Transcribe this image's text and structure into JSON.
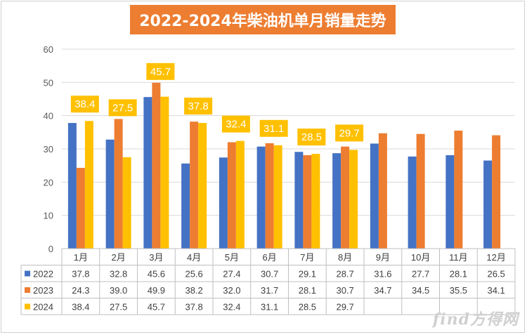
{
  "title": "2022-2024年柴油机单月销量走势",
  "watermark": "find方得网",
  "chart_data": {
    "type": "bar",
    "title": "2022-2024年柴油机单月销量走势",
    "categories": [
      "1月",
      "2月",
      "3月",
      "4月",
      "5月",
      "6月",
      "7月",
      "8月",
      "9月",
      "10月",
      "11月",
      "12月"
    ],
    "series": [
      {
        "name": "2022",
        "color": "#4472c4",
        "values": [
          37.8,
          32.8,
          45.6,
          25.6,
          27.4,
          30.7,
          29.1,
          28.7,
          31.6,
          27.7,
          28.1,
          26.5
        ]
      },
      {
        "name": "2023",
        "color": "#ed7d31",
        "values": [
          24.3,
          39.0,
          49.9,
          38.2,
          32.0,
          31.7,
          28.1,
          30.7,
          34.7,
          34.5,
          35.5,
          34.1
        ]
      },
      {
        "name": "2024",
        "color": "#ffc000",
        "values": [
          38.4,
          27.5,
          45.7,
          37.8,
          32.4,
          31.1,
          28.5,
          29.7,
          null,
          null,
          null,
          null
        ]
      }
    ],
    "data_labels": {
      "series": "2024",
      "values": [
        38.4,
        27.5,
        45.7,
        37.8,
        32.4,
        31.1,
        28.5,
        29.7
      ],
      "color": "#ffc000"
    },
    "ylim": [
      0,
      60
    ],
    "yticks": [
      0,
      10,
      20,
      30,
      40,
      50,
      60
    ],
    "grid": true,
    "legend": "data-table",
    "xlabel": "",
    "ylabel": ""
  }
}
